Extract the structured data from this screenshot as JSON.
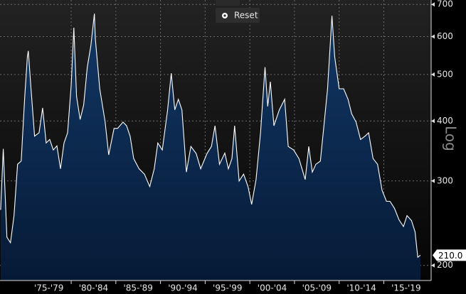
{
  "chart_data": {
    "type": "area",
    "log_scale": true,
    "grid": true,
    "y_label": "Log",
    "button": "Reset",
    "categories": [
      "'75-'79",
      "'80-'84",
      "'85-'89",
      "'90-'94",
      "'95-'99",
      "'00-'04",
      "'05-'09",
      "'10-'14",
      "'15-'19"
    ],
    "xlim": [
      1972.03,
      2020.3
    ],
    "xticks": [
      1980,
      1985,
      1990,
      1995,
      2000,
      2005,
      2010,
      2015
    ],
    "ylim": [
      186,
      715
    ],
    "yticks": [
      200,
      300,
      400,
      500,
      600,
      700
    ],
    "series": [
      {
        "color": "#ffffff",
        "x": [
          1972.1,
          1972.4,
          1972.8,
          1973.2,
          1973.6,
          1974.0,
          1974.4,
          1974.8,
          1975.1,
          1975.2,
          1975.5,
          1975.9,
          1976.4,
          1976.8,
          1977.2,
          1977.6,
          1978.0,
          1978.4,
          1978.8,
          1979.2,
          1979.6,
          1980.0,
          1980.3,
          1980.6,
          1981.0,
          1981.4,
          1981.8,
          1982.2,
          1982.6,
          1982.7,
          1983.2,
          1983.8,
          1984.2,
          1984.8,
          1985.2,
          1985.8,
          1986.2,
          1986.6,
          1987.0,
          1987.6,
          1988.2,
          1988.8,
          1989.3,
          1989.7,
          1990.2,
          1990.8,
          1991.2,
          1991.6,
          1992.0,
          1992.4,
          1992.9,
          1993.4,
          1994.0,
          1994.5,
          1995.2,
          1995.7,
          1996.1,
          1996.6,
          1997.2,
          1997.6,
          1998.0,
          1998.3,
          1998.8,
          1999.3,
          1999.8,
          2000.2,
          2000.7,
          2001.2,
          2001.7,
          2002.0,
          2002.3,
          2002.7,
          2003.3,
          2003.9,
          2004.3,
          2004.9,
          2005.5,
          2006.2,
          2006.6,
          2007.0,
          2007.4,
          2007.9,
          2008.3,
          2008.7,
          2009.2,
          2009.5,
          2010.0,
          2010.5,
          2011.0,
          2011.4,
          2011.9,
          2012.4,
          2012.9,
          2013.3,
          2013.8,
          2014.3,
          2014.8,
          2015.3,
          2015.7,
          2016.2,
          2016.7,
          2017.2,
          2017.6,
          2018.1,
          2018.5,
          2018.8,
          2019.1
        ],
        "values": [
          261,
          350,
          229,
          223,
          254,
          325,
          330,
          450,
          545,
          560,
          467,
          372,
          378,
          426,
          360,
          366,
          348,
          355,
          318,
          360,
          378,
          476,
          626,
          450,
          403,
          432,
          518,
          574,
          670,
          594,
          467,
          398,
          340,
          386,
          386,
          398,
          391,
          372,
          334,
          318,
          310,
          292,
          318,
          360,
          348,
          422,
          503,
          422,
          444,
          422,
          313,
          354,
          342,
          318,
          342,
          354,
          391,
          325,
          343,
          318,
          334,
          391,
          300,
          310,
          292,
          268,
          302,
          378,
          518,
          429,
          483,
          391,
          422,
          444,
          354,
          348,
          334,
          302,
          354,
          313,
          325,
          330,
          391,
          467,
          663,
          545,
          467,
          467,
          444,
          414,
          398,
          366,
          372,
          378,
          334,
          325,
          287,
          272,
          272,
          263,
          249,
          241,
          254,
          248,
          235,
          208,
          210
        ],
        "value_labels": [
          null,
          null,
          null,
          null,
          null,
          null,
          null,
          null,
          null,
          null,
          null,
          null,
          null,
          null,
          null,
          null,
          null,
          null,
          null,
          null,
          null,
          null,
          null,
          null,
          null,
          null,
          null,
          null,
          null,
          null,
          null,
          null,
          null,
          null,
          null,
          null,
          null,
          null,
          null,
          null,
          null,
          null,
          null,
          null,
          null,
          null,
          null,
          null,
          null,
          null,
          null,
          null,
          null,
          null,
          null,
          null,
          null,
          null,
          null,
          null,
          null,
          null,
          null,
          null,
          null,
          null,
          null,
          null,
          null,
          null,
          null,
          null,
          null,
          null,
          null,
          null,
          null,
          null,
          null,
          null,
          null,
          null,
          null,
          null,
          null,
          null,
          null,
          null,
          null,
          null,
          null,
          null,
          null,
          null,
          null,
          null,
          null,
          null,
          null,
          null,
          null,
          null,
          null,
          null,
          null,
          null,
          "210.0"
        ]
      }
    ]
  }
}
